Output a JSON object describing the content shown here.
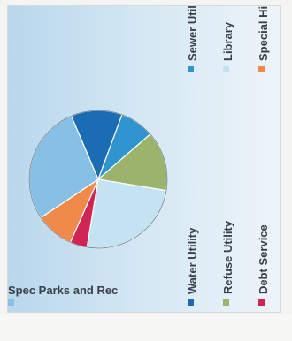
{
  "chart_data": {
    "type": "pie",
    "title": "",
    "rotation": "90-clockwise",
    "slices": [
      {
        "label": "Water Utility",
        "value": 12,
        "color": "#1a6db3"
      },
      {
        "label": "Sewer Utility",
        "value": 8,
        "color": "#2f95cf"
      },
      {
        "label": "Refuse Utility",
        "value": 14,
        "color": "#9bb36a"
      },
      {
        "label": "Library",
        "value": 25,
        "color": "#c3e2f2"
      },
      {
        "label": "Debt Service",
        "value": 4,
        "color": "#cf2454"
      },
      {
        "label": "Special Highway",
        "value": 9,
        "color": "#f08a4b"
      },
      {
        "label": "Spec Parks and Rec",
        "value": 28,
        "color": "#86c0e4"
      }
    ],
    "legend": [
      {
        "label": "Water Utility",
        "color": "#1a6db3"
      },
      {
        "label": "Sewer Utility",
        "color": "#2f95cf"
      },
      {
        "label": "Refuse Utility",
        "color": "#9bb36a"
      },
      {
        "label": "Library",
        "color": "#c3e2f2"
      },
      {
        "label": "Debt Service",
        "color": "#cf2454"
      },
      {
        "label": "Special Highway",
        "color": "#f08a4b"
      },
      {
        "label": "Spec Parks and Rec",
        "color": "#86c0e4"
      }
    ],
    "legend_position": "right"
  }
}
